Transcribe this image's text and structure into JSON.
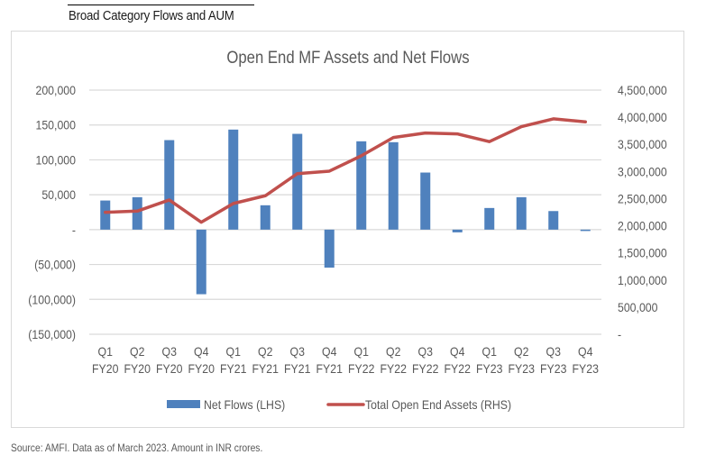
{
  "page": {
    "section_title": "Broad Category Flows and AUM",
    "source_note": "Source: AMFI. Data as of March 2023. Amount in INR crores."
  },
  "colors": {
    "bars": "#4f81bd",
    "line": "#c0504d",
    "grid": "#d9d9d9",
    "text": "#595959"
  },
  "chart_data": {
    "type": "bar",
    "title": "Open End MF Assets and Net Flows",
    "xlabel": "",
    "ylabel": "",
    "categories": [
      [
        "Q1",
        "FY20"
      ],
      [
        "Q2",
        "FY20"
      ],
      [
        "Q3",
        "FY20"
      ],
      [
        "Q4",
        "FY20"
      ],
      [
        "Q1",
        "FY21"
      ],
      [
        "Q2",
        "FY21"
      ],
      [
        "Q3",
        "FY21"
      ],
      [
        "Q4",
        "FY21"
      ],
      [
        "Q1",
        "FY22"
      ],
      [
        "Q2",
        "FY22"
      ],
      [
        "Q3",
        "FY22"
      ],
      [
        "Q4",
        "FY22"
      ],
      [
        "Q1",
        "FY23"
      ],
      [
        "Q2",
        "FY23"
      ],
      [
        "Q3",
        "FY23"
      ],
      [
        "Q4",
        "FY23"
      ]
    ],
    "series": [
      {
        "name": "Net Flows (LHS)",
        "type": "bar",
        "axis": "left",
        "values": [
          41700,
          46500,
          128300,
          -92600,
          143400,
          34900,
          137300,
          -54500,
          126600,
          125300,
          81800,
          -3900,
          31000,
          46500,
          26600,
          -2000
        ]
      },
      {
        "name": "Total Open End Assets (RHS)",
        "type": "line",
        "axis": "right",
        "values": [
          2247000,
          2270000,
          2475000,
          2065000,
          2410000,
          2553000,
          2960000,
          3006000,
          3290000,
          3626000,
          3709000,
          3693000,
          3550000,
          3826000,
          3970000,
          3915000
        ]
      }
    ],
    "left_axis": {
      "range": [
        -150000,
        200000
      ],
      "ticks": [
        200000,
        150000,
        100000,
        50000,
        0,
        -50000,
        -100000,
        -150000
      ],
      "tick_labels": [
        "200,000",
        "150,000",
        "100,000",
        "50,000",
        "-",
        "(50,000)",
        "(100,000)",
        "(150,000)"
      ]
    },
    "right_axis": {
      "range": [
        0,
        4500000
      ],
      "ticks": [
        4500000,
        4000000,
        3500000,
        3000000,
        2500000,
        2000000,
        1500000,
        1000000,
        500000,
        0
      ],
      "tick_labels": [
        "4,500,000",
        "4,000,000",
        "3,500,000",
        "3,000,000",
        "2,500,000",
        "2,000,000",
        "1,500,000",
        "1,000,000",
        "500,000",
        "-"
      ]
    },
    "grid": true,
    "legend": {
      "position": "bottom",
      "entries": [
        "Net Flows (LHS)",
        "Total Open End Assets (RHS)"
      ]
    }
  }
}
